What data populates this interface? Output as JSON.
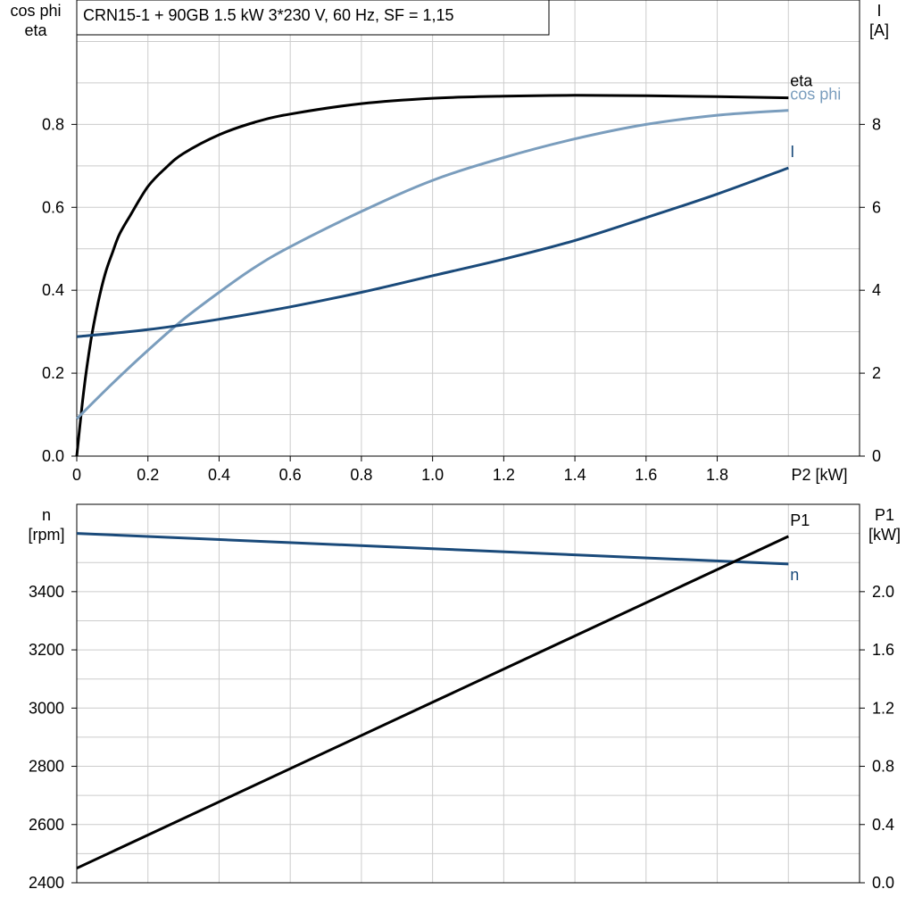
{
  "chart_data": [
    {
      "type": "line",
      "title": "CRN15-1 + 90GB   1.5 kW   3*230 V, 60 Hz, SF = 1,15",
      "xlabel": "P2 [kW]",
      "ylabel_left": [
        "cos phi",
        "eta"
      ],
      "ylabel_right": [
        "I",
        "[A]"
      ],
      "xlim": [
        0,
        2.2
      ],
      "ylim_left": [
        0,
        1.1
      ],
      "ylim_right": [
        0,
        11
      ],
      "x_ticks": [
        "0",
        "0.2",
        "0.4",
        "0.6",
        "0.8",
        "1.0",
        "1.2",
        "1.4",
        "1.6",
        "1.8"
      ],
      "y_ticks_left": [
        "0.0",
        "0.2",
        "0.4",
        "0.6",
        "0.8"
      ],
      "y_ticks_right": [
        "0",
        "2",
        "4",
        "6",
        "8"
      ],
      "grid": true,
      "series": [
        {
          "name": "eta",
          "axis": "left",
          "color": "#000000",
          "x": [
            0,
            0.02,
            0.04,
            0.06,
            0.08,
            0.1,
            0.12,
            0.15,
            0.2,
            0.25,
            0.3,
            0.4,
            0.5,
            0.6,
            0.8,
            1.0,
            1.2,
            1.4,
            1.6,
            1.8,
            2.0
          ],
          "y": [
            0,
            0.16,
            0.28,
            0.37,
            0.44,
            0.49,
            0.535,
            0.58,
            0.65,
            0.695,
            0.73,
            0.775,
            0.805,
            0.825,
            0.85,
            0.863,
            0.868,
            0.87,
            0.869,
            0.867,
            0.864
          ]
        },
        {
          "name": "cos phi",
          "axis": "left",
          "color": "#7a9dbd",
          "x": [
            0,
            0.1,
            0.2,
            0.3,
            0.4,
            0.5,
            0.6,
            0.8,
            1.0,
            1.2,
            1.4,
            1.6,
            1.8,
            2.0
          ],
          "y": [
            0.09,
            0.175,
            0.255,
            0.33,
            0.395,
            0.455,
            0.505,
            0.59,
            0.665,
            0.72,
            0.765,
            0.8,
            0.822,
            0.834
          ]
        },
        {
          "name": "I",
          "axis": "right",
          "color": "#1a4a7a",
          "x": [
            0,
            0.2,
            0.4,
            0.6,
            0.8,
            1.0,
            1.2,
            1.4,
            1.6,
            1.8,
            2.0
          ],
          "y": [
            2.88,
            3.05,
            3.3,
            3.6,
            3.95,
            4.35,
            4.75,
            5.2,
            5.75,
            6.32,
            6.95
          ]
        }
      ]
    },
    {
      "type": "line",
      "xlim": [
        0,
        2.2
      ],
      "ylabel_left": [
        "n",
        "[rpm]"
      ],
      "ylabel_right": [
        "P1",
        "[kW]"
      ],
      "ylim_left": [
        2400,
        3700
      ],
      "ylim_right": [
        0,
        2.6
      ],
      "y_ticks_left": [
        "2400",
        "2600",
        "2800",
        "3000",
        "3200",
        "3400"
      ],
      "y_ticks_right": [
        "0.0",
        "0.4",
        "0.8",
        "1.2",
        "1.6",
        "2.0"
      ],
      "grid": true,
      "series": [
        {
          "name": "n",
          "axis": "left",
          "color": "#1a4a7a",
          "x": [
            0,
            2.0
          ],
          "y": [
            3600,
            3495
          ]
        },
        {
          "name": "P1",
          "axis": "right",
          "color": "#000000",
          "x": [
            0,
            2.0
          ],
          "y": [
            0.1,
            2.38
          ]
        }
      ]
    }
  ]
}
